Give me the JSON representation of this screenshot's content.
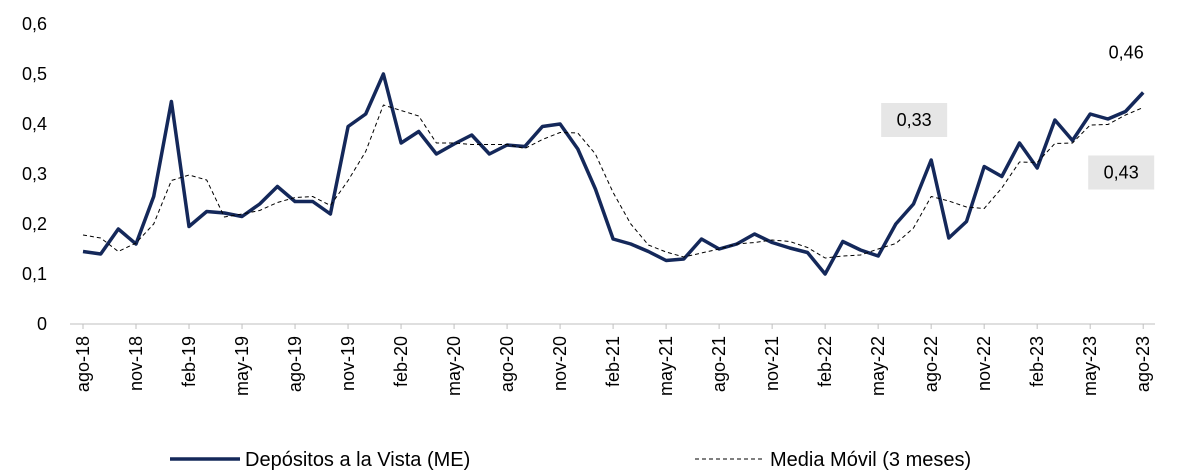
{
  "chart_data": {
    "type": "line",
    "categories": [
      "ago-18",
      null,
      null,
      "nov-18",
      null,
      null,
      "feb-19",
      null,
      null,
      "may-19",
      null,
      null,
      "ago-19",
      null,
      null,
      "nov-19",
      null,
      null,
      "feb-20",
      null,
      null,
      "may-20",
      null,
      null,
      "ago-20",
      null,
      null,
      "nov-20",
      null,
      null,
      "feb-21",
      null,
      null,
      "may-21",
      null,
      null,
      "ago-21",
      null,
      null,
      "nov-21",
      null,
      null,
      "feb-22",
      null,
      null,
      "may-22",
      null,
      null,
      "ago-22",
      null,
      null,
      "nov-22",
      null,
      null,
      "feb-23",
      null,
      null,
      "may-23",
      null,
      null,
      "ago-23"
    ],
    "series": [
      {
        "name": "Depósitos a la Vista (ME)",
        "color": "#14285a",
        "dash": false,
        "values": [
          0.145,
          0.14,
          0.19,
          0.16,
          0.255,
          0.445,
          0.195,
          0.225,
          0.222,
          0.215,
          0.24,
          0.275,
          0.245,
          0.245,
          0.22,
          0.395,
          0.42,
          0.5,
          0.362,
          0.385,
          0.34,
          0.36,
          0.378,
          0.34,
          0.358,
          0.355,
          0.395,
          0.4,
          0.35,
          0.27,
          0.17,
          0.16,
          0.145,
          0.127,
          0.13,
          0.17,
          0.15,
          0.16,
          0.18,
          0.163,
          0.152,
          0.143,
          0.1,
          0.165,
          0.148,
          0.136,
          0.2,
          0.24,
          0.328,
          0.172,
          0.205,
          0.315,
          0.295,
          0.362,
          0.312,
          0.408,
          0.367,
          0.42,
          0.41,
          0.425,
          0.463
        ],
        "value_labels": [
          null,
          null,
          null,
          null,
          null,
          null,
          null,
          null,
          null,
          null,
          null,
          null,
          null,
          null,
          null,
          null,
          null,
          null,
          null,
          null,
          null,
          null,
          null,
          null,
          null,
          null,
          null,
          null,
          null,
          null,
          null,
          null,
          null,
          null,
          null,
          null,
          null,
          null,
          null,
          null,
          null,
          null,
          null,
          null,
          null,
          null,
          null,
          null,
          "0,33",
          null,
          null,
          null,
          null,
          null,
          null,
          null,
          null,
          null,
          null,
          null,
          "0,46"
        ]
      },
      {
        "name": "Media Móvil (3 meses)",
        "color": "#000000",
        "dash": true,
        "values": [
          0.178,
          0.172,
          0.145,
          0.162,
          0.2,
          0.287,
          0.298,
          0.288,
          0.214,
          0.22,
          0.227,
          0.243,
          0.253,
          0.255,
          0.237,
          0.287,
          0.345,
          0.438,
          0.427,
          0.416,
          0.362,
          0.362,
          0.359,
          0.359,
          0.359,
          0.351,
          0.369,
          0.383,
          0.382,
          0.34,
          0.263,
          0.2,
          0.158,
          0.144,
          0.134,
          0.142,
          0.15,
          0.16,
          0.163,
          0.168,
          0.165,
          0.153,
          0.132,
          0.136,
          0.138,
          0.15,
          0.161,
          0.192,
          0.255,
          0.246,
          0.234,
          0.231,
          0.272,
          0.324,
          0.323,
          0.361,
          0.362,
          0.398,
          0.399,
          0.418,
          0.433
        ],
        "value_labels": [
          null,
          null,
          null,
          null,
          null,
          null,
          null,
          null,
          null,
          null,
          null,
          null,
          null,
          null,
          null,
          null,
          null,
          null,
          null,
          null,
          null,
          null,
          null,
          null,
          null,
          null,
          null,
          null,
          null,
          null,
          null,
          null,
          null,
          null,
          null,
          null,
          null,
          null,
          null,
          null,
          null,
          null,
          null,
          null,
          null,
          null,
          null,
          null,
          null,
          null,
          null,
          null,
          null,
          null,
          null,
          null,
          null,
          null,
          null,
          null,
          "0,43"
        ]
      }
    ],
    "ylim": [
      0,
      0.6
    ],
    "yticks": [
      0,
      {
        "value": 0.1,
        "label": "0,1"
      },
      {
        "value": 0.2,
        "label": "0,2"
      },
      {
        "value": 0.3,
        "label": "0,3"
      },
      {
        "value": 0.4,
        "label": "0,4"
      },
      {
        "value": 0.5,
        "label": "0,5"
      },
      {
        "value": 0.6,
        "label": "0,6"
      }
    ],
    "legend": "bottom"
  }
}
